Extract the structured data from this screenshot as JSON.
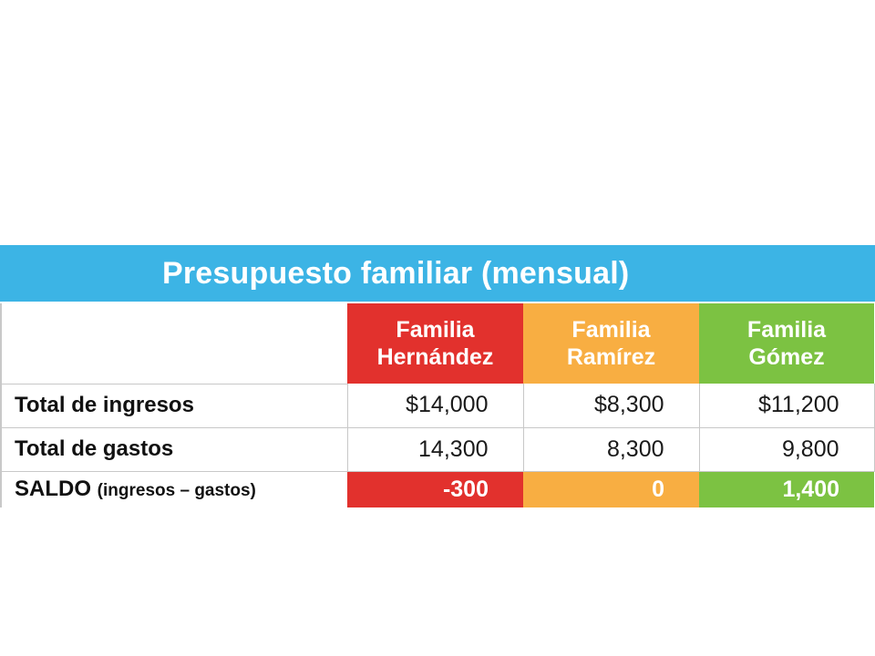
{
  "title": "Presupuesto familiar (mensual)",
  "columns": [
    {
      "label": "Familia\nHernández",
      "color": "#e2312d"
    },
    {
      "label": "Familia\nRamírez",
      "color": "#f8ae42"
    },
    {
      "label": "Familia\nGómez",
      "color": "#7cc242"
    }
  ],
  "rows": [
    {
      "label": "Total de ingresos",
      "values": [
        "$14,000",
        "$8,300",
        "$11,200"
      ]
    },
    {
      "label": "Total de gastos",
      "values": [
        "14,300",
        "8,300",
        "9,800"
      ]
    }
  ],
  "saldo": {
    "label": "SALDO",
    "sublabel": "(ingresos – gastos)",
    "values": [
      "-300",
      "0",
      "1,400"
    ]
  }
}
